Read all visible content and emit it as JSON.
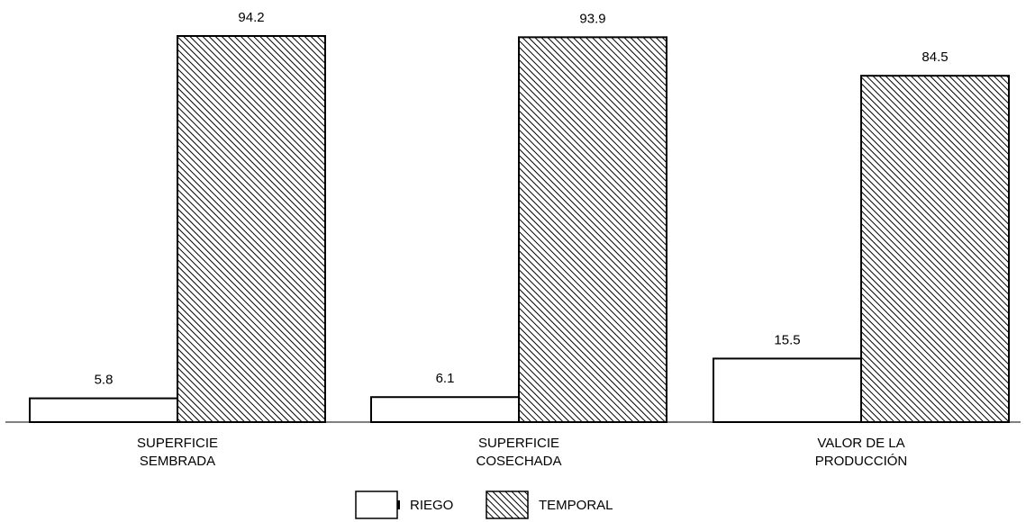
{
  "chart_data": {
    "type": "bar",
    "categories": [
      [
        "SUPERFICIE",
        "SEMBRADA"
      ],
      [
        "SUPERFICIE",
        "COSECHADA"
      ],
      [
        "VALOR DE LA",
        "PRODUCCIÓN"
      ]
    ],
    "series": [
      {
        "name": "RIEGO",
        "values": [
          5.8,
          6.1,
          15.5
        ],
        "fill": "#ffffff",
        "pattern": "none"
      },
      {
        "name": "TEMPORAL",
        "values": [
          94.2,
          93.9,
          84.5
        ],
        "fill": "#ffffff",
        "pattern": "diagonal-hatch"
      }
    ],
    "value_labels": [
      [
        "5.8",
        "6.1",
        "15.5"
      ],
      [
        "94.2",
        "93.9",
        "84.5"
      ]
    ],
    "ylim": [
      0,
      94.2
    ],
    "grid": false,
    "legend_position": "bottom-center",
    "title": "",
    "xlabel": "",
    "ylabel": ""
  }
}
